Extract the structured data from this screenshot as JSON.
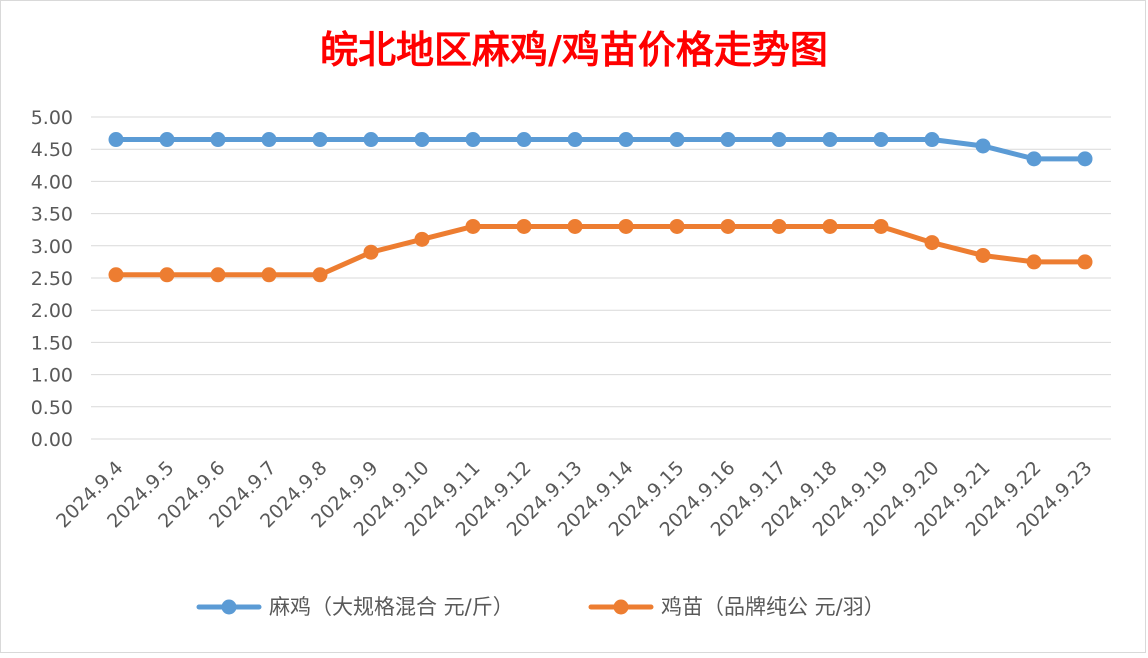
{
  "chart_data": {
    "type": "line",
    "title": "皖北地区麻鸡/鸡苗价格走势图",
    "xlabel": "",
    "ylabel": "",
    "categories": [
      "2024.9.4",
      "2024.9.5",
      "2024.9.6",
      "2024.9.7",
      "2024.9.8",
      "2024.9.9",
      "2024.9.10",
      "2024.9.11",
      "2024.9.12",
      "2024.9.13",
      "2024.9.14",
      "2024.9.15",
      "2024.9.16",
      "2024.9.17",
      "2024.9.18",
      "2024.9.19",
      "2024.9.20",
      "2024.9.21",
      "2024.9.22",
      "2024.9.23"
    ],
    "yticks": [
      "0.00",
      "0.50",
      "1.00",
      "1.50",
      "2.00",
      "2.50",
      "3.00",
      "3.50",
      "4.00",
      "4.50",
      "5.00"
    ],
    "ylim": [
      0,
      5
    ],
    "grid": true,
    "legend": "bottom",
    "series": [
      {
        "name": "麻鸡（大规格混合 元/斤）",
        "color": "#5b9bd5",
        "values": [
          4.65,
          4.65,
          4.65,
          4.65,
          4.65,
          4.65,
          4.65,
          4.65,
          4.65,
          4.65,
          4.65,
          4.65,
          4.65,
          4.65,
          4.65,
          4.65,
          4.65,
          4.55,
          4.35,
          4.35
        ]
      },
      {
        "name": "鸡苗（品牌纯公 元/羽）",
        "color": "#ed7d31",
        "values": [
          2.55,
          2.55,
          2.55,
          2.55,
          2.55,
          2.9,
          3.1,
          3.3,
          3.3,
          3.3,
          3.3,
          3.3,
          3.3,
          3.3,
          3.3,
          3.3,
          3.05,
          2.85,
          2.75,
          2.75
        ]
      }
    ],
    "title_color": "#ff0000"
  }
}
